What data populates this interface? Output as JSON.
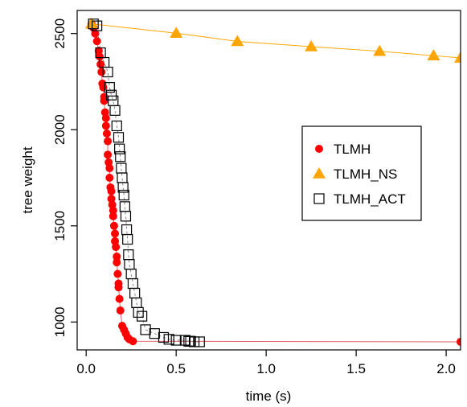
{
  "chart_data": {
    "type": "scatter",
    "title": "",
    "xlabel": "time (s)",
    "ylabel": "tree weight",
    "xlim": [
      -0.05,
      2.08
    ],
    "ylim": [
      855,
      2620
    ],
    "xticks": [
      {
        "value": 0.0,
        "label": "0.0"
      },
      {
        "value": 0.5,
        "label": "0.5"
      },
      {
        "value": 1.0,
        "label": "1.0"
      },
      {
        "value": 1.5,
        "label": "1.5"
      },
      {
        "value": 2.0,
        "label": "2.0"
      }
    ],
    "yticks": [
      {
        "value": 1000,
        "label": "1000"
      },
      {
        "value": 1500,
        "label": "1500"
      },
      {
        "value": 2000,
        "label": "2000"
      },
      {
        "value": 2500,
        "label": "2500"
      }
    ],
    "legend": {
      "position": "right"
    },
    "series": [
      {
        "name": "TLMH",
        "marker": "circle-filled",
        "color": "#ff0000",
        "line_color": "#e06060",
        "x": [
          0.03,
          0.04,
          0.05,
          0.06,
          0.07,
          0.075,
          0.08,
          0.085,
          0.09,
          0.095,
          0.1,
          0.1,
          0.105,
          0.11,
          0.11,
          0.115,
          0.12,
          0.12,
          0.125,
          0.13,
          0.13,
          0.135,
          0.14,
          0.14,
          0.145,
          0.15,
          0.15,
          0.155,
          0.16,
          0.16,
          0.165,
          0.17,
          0.17,
          0.175,
          0.18,
          0.18,
          0.185,
          0.19,
          0.2,
          0.21,
          0.22,
          0.23,
          0.24,
          0.26,
          2.08
        ],
        "y": [
          2550,
          2530,
          2500,
          2460,
          2410,
          2380,
          2340,
          2300,
          2240,
          2220,
          2170,
          2150,
          2090,
          2060,
          2020,
          1980,
          1940,
          1870,
          1830,
          1800,
          1750,
          1700,
          1680,
          1640,
          1610,
          1580,
          1550,
          1500,
          1460,
          1420,
          1390,
          1340,
          1310,
          1250,
          1200,
          1180,
          1120,
          1060,
          980,
          960,
          940,
          920,
          910,
          900,
          897
        ]
      },
      {
        "name": "TLMH_NS",
        "marker": "triangle-filled",
        "color": "#ffa500",
        "line_color": "#ffa500",
        "x": [
          0.03,
          0.5,
          0.84,
          1.25,
          1.63,
          1.93,
          2.08
        ],
        "y": [
          2550,
          2502,
          2459,
          2432,
          2408,
          2385,
          2373
        ]
      },
      {
        "name": "TLMH_ACT",
        "marker": "square-open",
        "color": "#000000",
        "line_color": "#888888",
        "x": [
          0.04,
          0.06,
          0.08,
          0.1,
          0.12,
          0.13,
          0.14,
          0.15,
          0.16,
          0.17,
          0.18,
          0.185,
          0.19,
          0.195,
          0.2,
          0.205,
          0.21,
          0.215,
          0.22,
          0.225,
          0.23,
          0.235,
          0.24,
          0.25,
          0.26,
          0.27,
          0.28,
          0.29,
          0.31,
          0.33,
          0.38,
          0.43,
          0.46,
          0.5,
          0.55,
          0.57,
          0.58,
          0.6,
          0.63
        ],
        "y": [
          2550,
          2540,
          2400,
          2350,
          2300,
          2220,
          2180,
          2150,
          2100,
          2020,
          1960,
          1900,
          1860,
          1800,
          1750,
          1700,
          1660,
          1600,
          1550,
          1480,
          1430,
          1350,
          1300,
          1250,
          1200,
          1150,
          1100,
          1050,
          1030,
          960,
          940,
          920,
          910,
          905,
          905,
          900,
          900,
          897,
          897
        ]
      }
    ]
  }
}
